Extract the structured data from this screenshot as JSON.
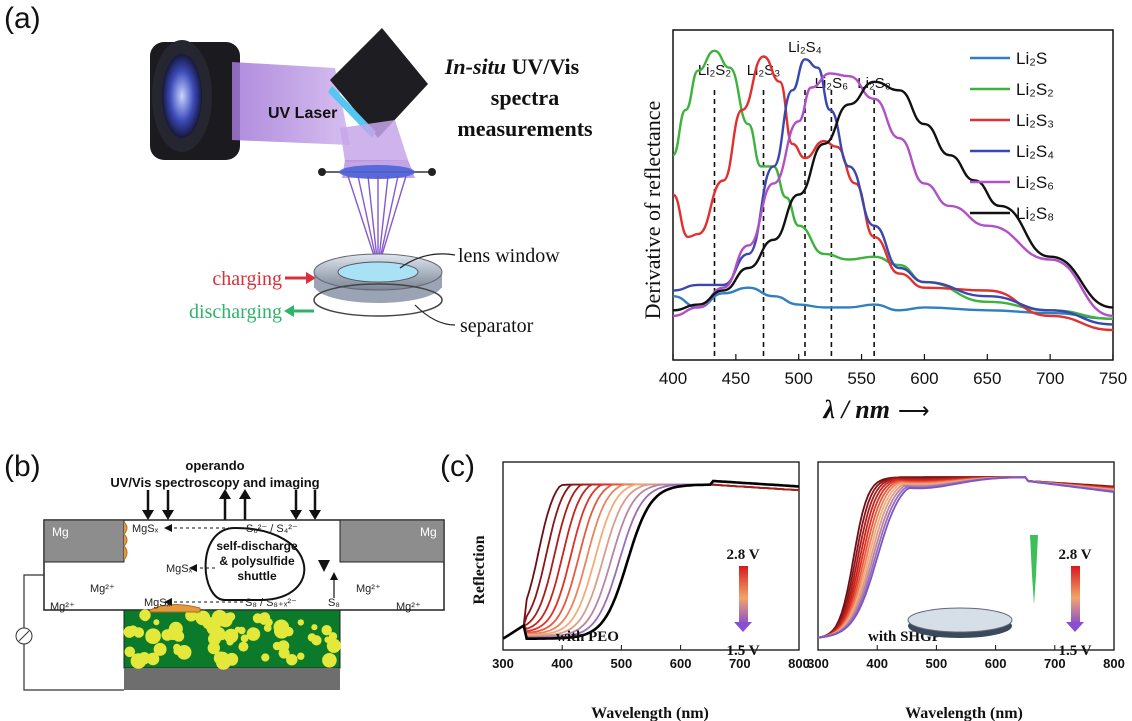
{
  "panel_labels": {
    "a": "(a)",
    "b": "(b)",
    "c": "(c)"
  },
  "panel_a": {
    "title": {
      "line1_italic": "In-situ",
      "line1_rest": " UV/Vis",
      "line2": "spectra",
      "line3": "measurements"
    },
    "laser_label": "UV Laser",
    "lens_label": "lens window",
    "separator_label": "separator",
    "charging_label": "charging",
    "discharging_label": "discharging",
    "colors": {
      "charging": "#d8313a",
      "discharging": "#2eb36b",
      "beam": "#8a55c8"
    }
  },
  "chart_data": [
    {
      "type": "line",
      "panel": "a",
      "xlabel": "λ / nm",
      "xlabel_arrow": "⟶",
      "ylabel": "Derivative of reflectance",
      "xlim": [
        400,
        750
      ],
      "ylim": [
        0,
        1
      ],
      "xticks": [
        400,
        450,
        500,
        550,
        600,
        650,
        700,
        750
      ],
      "vlines": [
        {
          "x": 433,
          "label": "Li₂S₂"
        },
        {
          "x": 472,
          "label": "Li₂S₃"
        },
        {
          "x": 505,
          "label": "Li₂S₄"
        },
        {
          "x": 526,
          "label": "Li₂S₆"
        },
        {
          "x": 560,
          "label": "Li₂S₈"
        }
      ],
      "series": [
        {
          "name": "Li₂S",
          "color": "#2f7fc1",
          "x": [
            400,
            420,
            440,
            460,
            480,
            500,
            520,
            540,
            560,
            580,
            600,
            650,
            700,
            750
          ],
          "y": [
            0.12,
            0.08,
            0.13,
            0.15,
            0.12,
            0.09,
            0.08,
            0.08,
            0.09,
            0.07,
            0.08,
            0.07,
            0.06,
            0.04
          ]
        },
        {
          "name": "Li₂S₂",
          "color": "#3db23d",
          "x": [
            400,
            410,
            420,
            433,
            445,
            460,
            470,
            480,
            490,
            500,
            520,
            540,
            560,
            580,
            600,
            650,
            700,
            750
          ],
          "y": [
            0.62,
            0.78,
            0.92,
            0.99,
            0.93,
            0.73,
            0.58,
            0.58,
            0.47,
            0.37,
            0.27,
            0.25,
            0.26,
            0.23,
            0.17,
            0.1,
            0.07,
            0.04
          ]
        },
        {
          "name": "Li₂S₃",
          "color": "#e03030",
          "x": [
            400,
            412,
            420,
            440,
            455,
            472,
            485,
            495,
            505,
            520,
            530,
            545,
            560,
            580,
            600,
            650,
            700,
            750
          ],
          "y": [
            0.48,
            0.33,
            0.34,
            0.53,
            0.78,
            0.97,
            0.88,
            0.66,
            0.61,
            0.67,
            0.65,
            0.52,
            0.33,
            0.2,
            0.15,
            0.14,
            0.05,
            0.0
          ]
        },
        {
          "name": "Li₂S₄",
          "color": "#3a47b0",
          "x": [
            400,
            420,
            440,
            460,
            480,
            495,
            505,
            515,
            525,
            540,
            560,
            580,
            600,
            650,
            700,
            750
          ],
          "y": [
            0.14,
            0.16,
            0.16,
            0.27,
            0.58,
            0.85,
            0.96,
            0.93,
            0.78,
            0.58,
            0.37,
            0.22,
            0.17,
            0.12,
            0.07,
            0.02
          ]
        },
        {
          "name": "Li₂S₆",
          "color": "#b050c8",
          "x": [
            400,
            420,
            440,
            460,
            480,
            500,
            510,
            525,
            540,
            560,
            580,
            600,
            620,
            650,
            700,
            750
          ],
          "y": [
            0.05,
            0.08,
            0.15,
            0.3,
            0.52,
            0.74,
            0.86,
            0.91,
            0.9,
            0.82,
            0.68,
            0.52,
            0.44,
            0.37,
            0.25,
            0.05
          ]
        },
        {
          "name": "Li₂S₈",
          "color": "#111111",
          "x": [
            400,
            420,
            440,
            460,
            480,
            500,
            520,
            540,
            560,
            580,
            600,
            620,
            640,
            660,
            700,
            750
          ],
          "y": [
            0.07,
            0.09,
            0.14,
            0.22,
            0.32,
            0.48,
            0.66,
            0.8,
            0.88,
            0.85,
            0.73,
            0.62,
            0.53,
            0.44,
            0.26,
            0.08
          ]
        }
      ],
      "legend_position": "top-right"
    },
    {
      "type": "line",
      "panel": "c-left",
      "xlabel": "Wavelength (nm)",
      "ylabel": "Reflection",
      "xlim": [
        300,
        800
      ],
      "xticks": [
        300,
        400,
        500,
        600,
        700,
        800
      ],
      "annotation": "with PEO",
      "voltage_top": "2.8 V",
      "voltage_bottom": "1.5 V",
      "series_count": 12,
      "color_high": "#7a1016",
      "color_low": "#7a55cc",
      "curves_note": "reflection increases with wavelength; higher voltage curves rise earlier"
    },
    {
      "type": "line",
      "panel": "c-right",
      "xlabel": "Wavelength (nm)",
      "xlim": [
        300,
        800
      ],
      "xticks": [
        300,
        400,
        500,
        600,
        700,
        800
      ],
      "annotation": "with SHGP",
      "voltage_top": "2.8 V",
      "voltage_bottom": "1.5 V",
      "series_count": 12
    }
  ],
  "panel_b": {
    "title_line1": "operando",
    "title_line2": "UV/Vis spectroscopy and imaging",
    "mg_left": "Mg",
    "mg_right": "Mg",
    "cycle_line1": "self-discharge",
    "cycle_line2": "& polysulfide",
    "cycle_line3": "shuttle",
    "species_top": "S₆²⁻ / S₄²⁻",
    "species_bottom": "S₈ / S₈₊ₓ²⁻",
    "s8": "S₈",
    "mgsx_1": "MgSₓ",
    "mgsx_2": "MgSₓ",
    "mgsx_3": "MgSₓ",
    "mg2_a": "Mg²⁺",
    "mg2_b": "Mg²⁺",
    "mg2_c": "Mg²⁺",
    "mg2_d": "Mg²⁺"
  }
}
